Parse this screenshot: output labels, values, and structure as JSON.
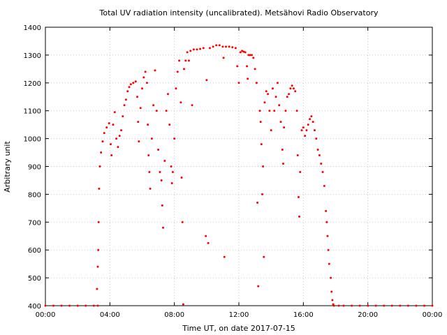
{
  "chart_data": {
    "type": "scatter",
    "title": "Total UV radiation intensity (uncalibrated). Metsähovi Radio Observatory",
    "xlabel": "Time UT, on date 2017-07-15",
    "ylabel": "Arbitrary unit",
    "xlim": [
      0,
      24
    ],
    "ylim": [
      400,
      1400
    ],
    "x_tick_values": [
      0,
      4,
      8,
      12,
      16,
      20,
      24
    ],
    "x_tick_labels": [
      "00:00",
      "04:00",
      "08:00",
      "12:00",
      "16:00",
      "20:00",
      "00:00"
    ],
    "y_tick_values": [
      400,
      500,
      600,
      700,
      800,
      900,
      1000,
      1100,
      1200,
      1300,
      1400
    ],
    "y_tick_labels": [
      "400",
      "500",
      "600",
      "700",
      "800",
      "900",
      "1000",
      "1100",
      "1200",
      "1300",
      "1400"
    ],
    "grid": true,
    "legend": "none",
    "colors": {
      "series": "#ff0000",
      "grid": "#c8c8c8",
      "axis": "#000000"
    },
    "series": [
      {
        "points": [
          [
            0.0,
            400
          ],
          [
            0.5,
            400
          ],
          [
            1.0,
            400
          ],
          [
            1.5,
            400
          ],
          [
            2.0,
            400
          ],
          [
            2.5,
            400
          ],
          [
            3.0,
            400
          ],
          [
            3.25,
            400
          ],
          [
            3.2,
            460
          ],
          [
            3.25,
            540
          ],
          [
            3.28,
            600
          ],
          [
            3.3,
            700
          ],
          [
            3.33,
            820
          ],
          [
            3.38,
            900
          ],
          [
            3.45,
            950
          ],
          [
            3.55,
            990
          ],
          [
            3.65,
            1020
          ],
          [
            3.8,
            1040
          ],
          [
            3.95,
            1055
          ],
          [
            4.05,
            980
          ],
          [
            4.1,
            940
          ],
          [
            4.2,
            1050
          ],
          [
            4.3,
            1095
          ],
          [
            4.4,
            1000
          ],
          [
            4.5,
            970
          ],
          [
            4.6,
            1010
          ],
          [
            4.7,
            1030
          ],
          [
            4.8,
            1080
          ],
          [
            4.9,
            1120
          ],
          [
            5.0,
            1140
          ],
          [
            5.1,
            1170
          ],
          [
            5.2,
            1185
          ],
          [
            5.3,
            1195
          ],
          [
            5.45,
            1200
          ],
          [
            5.6,
            1205
          ],
          [
            5.7,
            1150
          ],
          [
            5.75,
            1060
          ],
          [
            5.8,
            990
          ],
          [
            5.9,
            1110
          ],
          [
            6.0,
            1180
          ],
          [
            6.1,
            1220
          ],
          [
            6.2,
            1240
          ],
          [
            6.3,
            1200
          ],
          [
            6.35,
            1050
          ],
          [
            6.4,
            940
          ],
          [
            6.45,
            880
          ],
          [
            6.5,
            820
          ],
          [
            6.6,
            1000
          ],
          [
            6.7,
            1120
          ],
          [
            6.8,
            1245
          ],
          [
            6.9,
            1100
          ],
          [
            7.0,
            960
          ],
          [
            7.1,
            880
          ],
          [
            7.2,
            850
          ],
          [
            7.25,
            760
          ],
          [
            7.3,
            680
          ],
          [
            7.4,
            920
          ],
          [
            7.5,
            1100
          ],
          [
            7.6,
            1160
          ],
          [
            7.7,
            1050
          ],
          [
            7.8,
            900
          ],
          [
            7.85,
            840
          ],
          [
            7.9,
            880
          ],
          [
            8.0,
            1000
          ],
          [
            8.1,
            1180
          ],
          [
            8.2,
            1240
          ],
          [
            8.3,
            1280
          ],
          [
            8.4,
            1130
          ],
          [
            8.45,
            860
          ],
          [
            8.5,
            700
          ],
          [
            8.55,
            405
          ],
          [
            8.6,
            1250
          ],
          [
            8.7,
            1280
          ],
          [
            8.8,
            1310
          ],
          [
            8.9,
            1280
          ],
          [
            9.0,
            1315
          ],
          [
            9.1,
            1120
          ],
          [
            9.2,
            1320
          ],
          [
            9.4,
            1320
          ],
          [
            9.6,
            1322
          ],
          [
            9.8,
            1325
          ],
          [
            9.95,
            650
          ],
          [
            10.0,
            1210
          ],
          [
            10.1,
            625
          ],
          [
            10.2,
            1325
          ],
          [
            10.4,
            1330
          ],
          [
            10.6,
            1335
          ],
          [
            10.8,
            1335
          ],
          [
            11.0,
            1330
          ],
          [
            11.05,
            1290
          ],
          [
            11.1,
            575
          ],
          [
            11.2,
            1330
          ],
          [
            11.4,
            1330
          ],
          [
            11.6,
            1328
          ],
          [
            11.8,
            1325
          ],
          [
            11.9,
            1260
          ],
          [
            12.0,
            1200
          ],
          [
            12.1,
            1310
          ],
          [
            12.2,
            1315
          ],
          [
            12.3,
            1312
          ],
          [
            12.4,
            1310
          ],
          [
            12.5,
            1260
          ],
          [
            12.55,
            1215
          ],
          [
            12.6,
            1300
          ],
          [
            12.7,
            1300
          ],
          [
            12.8,
            1300
          ],
          [
            12.9,
            1290
          ],
          [
            13.0,
            1250
          ],
          [
            13.1,
            1200
          ],
          [
            13.15,
            770
          ],
          [
            13.2,
            470
          ],
          [
            13.3,
            1100
          ],
          [
            13.35,
            1060
          ],
          [
            13.4,
            980
          ],
          [
            13.45,
            800
          ],
          [
            13.5,
            900
          ],
          [
            13.55,
            575
          ],
          [
            13.6,
            1130
          ],
          [
            13.7,
            1170
          ],
          [
            13.8,
            1160
          ],
          [
            13.9,
            1100
          ],
          [
            14.0,
            1030
          ],
          [
            14.1,
            1180
          ],
          [
            14.2,
            1100
          ],
          [
            14.3,
            1150
          ],
          [
            14.4,
            1200
          ],
          [
            14.5,
            1120
          ],
          [
            14.6,
            1060
          ],
          [
            14.7,
            960
          ],
          [
            14.75,
            910
          ],
          [
            14.8,
            1040
          ],
          [
            14.9,
            1100
          ],
          [
            15.0,
            1150
          ],
          [
            15.1,
            1160
          ],
          [
            15.2,
            1180
          ],
          [
            15.3,
            1190
          ],
          [
            15.4,
            1180
          ],
          [
            15.5,
            1170
          ],
          [
            15.6,
            1100
          ],
          [
            15.65,
            940
          ],
          [
            15.7,
            790
          ],
          [
            15.75,
            720
          ],
          [
            15.8,
            880
          ],
          [
            15.9,
            1030
          ],
          [
            16.0,
            1040
          ],
          [
            16.1,
            1010
          ],
          [
            16.2,
            1030
          ],
          [
            16.3,
            1050
          ],
          [
            16.4,
            1070
          ],
          [
            16.5,
            1080
          ],
          [
            16.6,
            1060
          ],
          [
            16.7,
            1030
          ],
          [
            16.8,
            1000
          ],
          [
            16.9,
            960
          ],
          [
            17.0,
            940
          ],
          [
            17.1,
            910
          ],
          [
            17.2,
            880
          ],
          [
            17.3,
            830
          ],
          [
            17.4,
            740
          ],
          [
            17.45,
            700
          ],
          [
            17.5,
            650
          ],
          [
            17.55,
            600
          ],
          [
            17.6,
            550
          ],
          [
            17.7,
            500
          ],
          [
            17.75,
            450
          ],
          [
            17.8,
            420
          ],
          [
            17.85,
            405
          ],
          [
            17.9,
            400
          ],
          [
            18.2,
            400
          ],
          [
            18.5,
            400
          ],
          [
            19.0,
            400
          ],
          [
            19.5,
            400
          ],
          [
            20.0,
            400
          ],
          [
            20.5,
            400
          ],
          [
            21.0,
            400
          ],
          [
            21.5,
            400
          ],
          [
            22.0,
            400
          ],
          [
            22.5,
            400
          ],
          [
            23.0,
            400
          ],
          [
            23.5,
            400
          ],
          [
            24.0,
            400
          ]
        ]
      }
    ]
  }
}
